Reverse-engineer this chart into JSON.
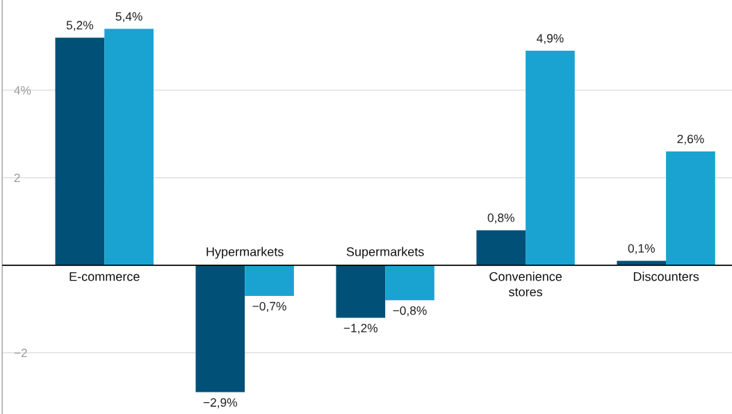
{
  "chart_data": {
    "type": "bar",
    "categories": [
      "E-commerce",
      "Hypermarkets",
      "Supermarkets",
      "Convenience\nstores",
      "Discounters"
    ],
    "series": [
      {
        "color": "#005078",
        "values": [
          5.2,
          -2.9,
          -1.2,
          0.8,
          0.1
        ],
        "value_labels": [
          "5,2%",
          "−2,9%",
          "−1,2%",
          "0,8%",
          "0,1%"
        ]
      },
      {
        "color": "#1aa3d0",
        "values": [
          5.4,
          -0.7,
          -0.8,
          4.9,
          2.6
        ],
        "value_labels": [
          "5,4%",
          "−0,7%",
          "−0,8%",
          "4,9%",
          "2,6%"
        ]
      }
    ],
    "ylim": [
      -3.4,
      6.06
    ],
    "yticks": [
      {
        "value": 4,
        "label": "4%"
      },
      2,
      -2
    ],
    "grid": "y"
  }
}
